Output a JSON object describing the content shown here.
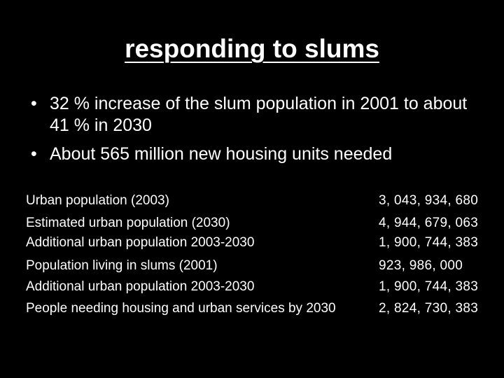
{
  "slide": {
    "title": "responding to slums",
    "bullets": [
      "32 % increase of the slum population in 2001 to about 41 % in 2030",
      "About 565 million new housing units needed"
    ],
    "bullet_marker": "•",
    "table": {
      "rows": [
        {
          "label": "Urban population (2003)",
          "value": "3, 043, 934, 680"
        },
        {
          "label": "Estimated urban population (2030)",
          "value": "4, 944, 679, 063"
        },
        {
          "label": "Additional urban population 2003-2030",
          "value": "1, 900, 744, 383"
        },
        {
          "label": "Population living in slums (2001)",
          "value": "923, 986, 000"
        },
        {
          "label": "Additional urban population 2003-2030",
          "value": "1, 900, 744, 383"
        },
        {
          "label": "People needing housing and urban services by 2030",
          "value": "2, 824, 730, 383"
        }
      ]
    }
  }
}
